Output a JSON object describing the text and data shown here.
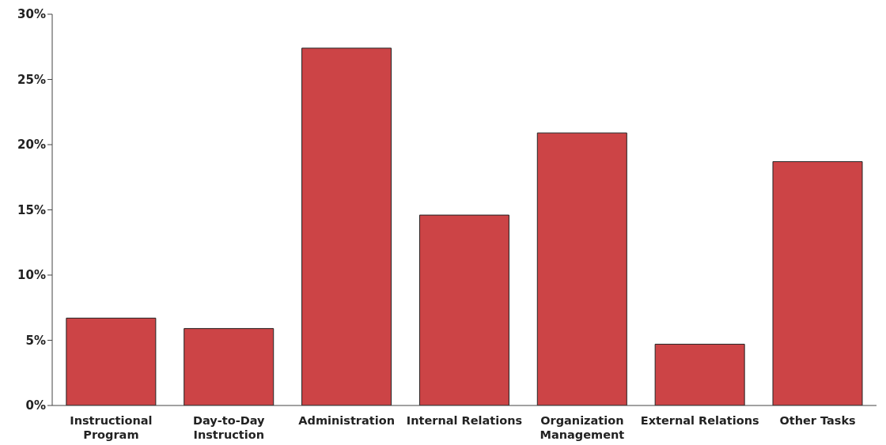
{
  "chart_data": {
    "type": "bar",
    "categories": [
      "Instructional Program",
      "Day-to-Day Instruction",
      "Administration",
      "Internal Relations",
      "Organization Management",
      "External Relations",
      "Other Tasks"
    ],
    "values": [
      6.7,
      5.9,
      27.4,
      14.6,
      20.9,
      4.7,
      18.7
    ],
    "color": "#cc4446",
    "ylim": [
      0,
      30
    ],
    "yticks": [
      {
        "value": 0,
        "label": "0%"
      },
      {
        "value": 5,
        "label": "5%"
      },
      {
        "value": 10,
        "label": "10%"
      },
      {
        "value": 15,
        "label": "15%"
      },
      {
        "value": 20,
        "label": "20%"
      },
      {
        "value": 25,
        "label": "25%"
      },
      {
        "value": 30,
        "label": "30%"
      }
    ],
    "grid": false,
    "legend": false
  }
}
